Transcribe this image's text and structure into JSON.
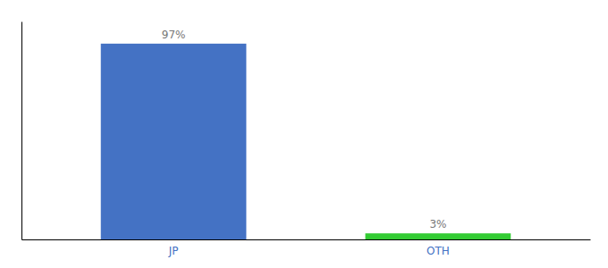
{
  "chart_data": {
    "type": "bar",
    "categories": [
      "JP",
      "OTH"
    ],
    "values": [
      97,
      3
    ],
    "colors": [
      "#4472c4",
      "#33cc33"
    ],
    "ylim": [
      0,
      108
    ],
    "data_labels": true,
    "value_labels": [
      "97%",
      "3%"
    ],
    "tick_labels": "x"
  }
}
